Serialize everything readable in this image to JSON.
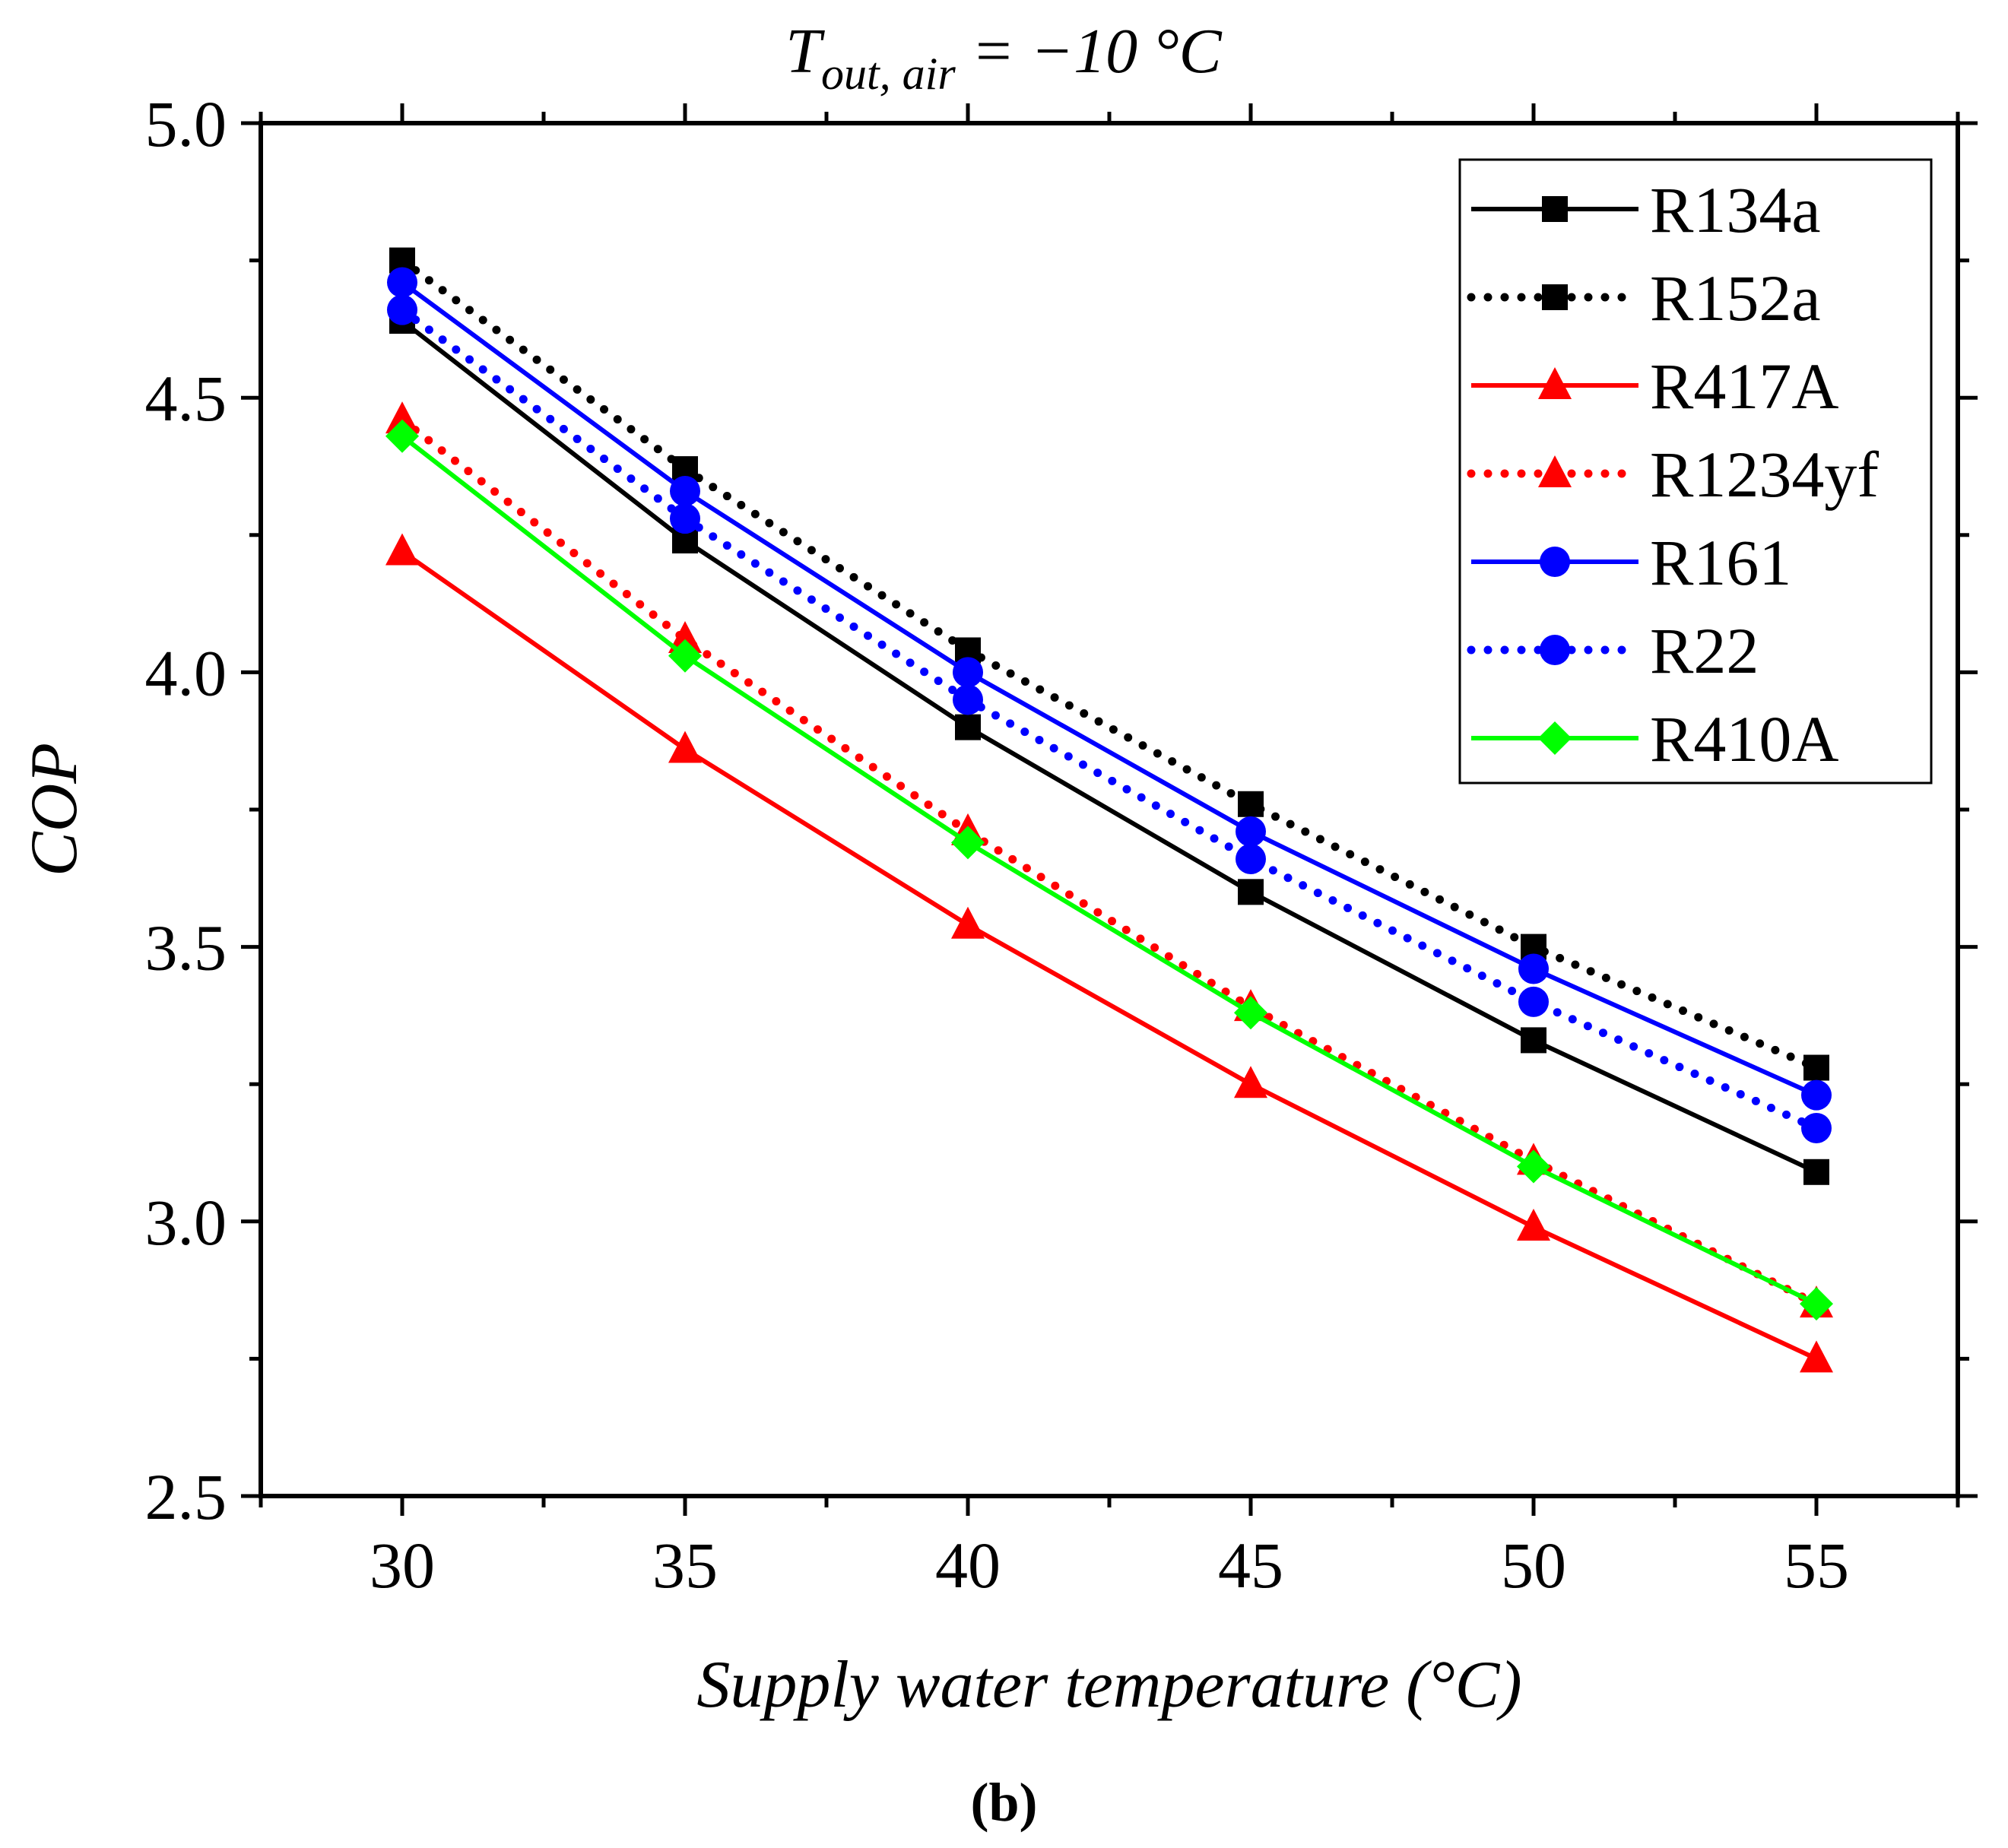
{
  "chart_data": {
    "type": "line",
    "title_main": "T",
    "title_sub": "out, air",
    "title_rest": " = −10 °C",
    "xlabel": "Supply water temperature (°C)",
    "ylabel": "COP",
    "panel_label": "(b)",
    "xlim": [
      27.5,
      57.5
    ],
    "ylim": [
      2.5,
      5.0
    ],
    "xticks": [
      30,
      35,
      40,
      45,
      50,
      55
    ],
    "yticks": [
      2.5,
      3.0,
      3.5,
      4.0,
      4.5,
      5.0
    ],
    "ytick_labels": [
      "2.5",
      "3.0",
      "3.5",
      "4.0",
      "4.5",
      "5.0"
    ],
    "grid": false,
    "legend_position": "top-right",
    "x": [
      30,
      35,
      40,
      45,
      50,
      55
    ],
    "series": [
      {
        "name": "R134a",
        "values": [
          4.64,
          4.24,
          3.9,
          3.6,
          3.33,
          3.09
        ],
        "color": "#000000",
        "line": "solid",
        "marker": "square"
      },
      {
        "name": "R152a",
        "values": [
          4.75,
          4.37,
          4.04,
          3.76,
          3.5,
          3.28
        ],
        "color": "#000000",
        "line": "dotted",
        "marker": "square"
      },
      {
        "name": "R417A",
        "values": [
          4.22,
          3.86,
          3.54,
          3.25,
          2.99,
          2.75
        ],
        "color": "#ff0000",
        "line": "solid",
        "marker": "triangle"
      },
      {
        "name": "R1234yf",
        "values": [
          4.46,
          4.06,
          3.71,
          3.39,
          3.11,
          2.85
        ],
        "color": "#ff0000",
        "line": "dotted",
        "marker": "triangle"
      },
      {
        "name": "R161",
        "values": [
          4.71,
          4.33,
          4.0,
          3.71,
          3.46,
          3.23
        ],
        "color": "#0000ff",
        "line": "solid",
        "marker": "circle"
      },
      {
        "name": "R22",
        "values": [
          4.66,
          4.28,
          3.95,
          3.66,
          3.4,
          3.17
        ],
        "color": "#0000ff",
        "line": "dotted",
        "marker": "circle"
      },
      {
        "name": "R410A",
        "values": [
          4.43,
          4.03,
          3.69,
          3.38,
          3.1,
          2.85
        ],
        "color": "#00ff00",
        "line": "solid",
        "marker": "diamond"
      }
    ]
  }
}
